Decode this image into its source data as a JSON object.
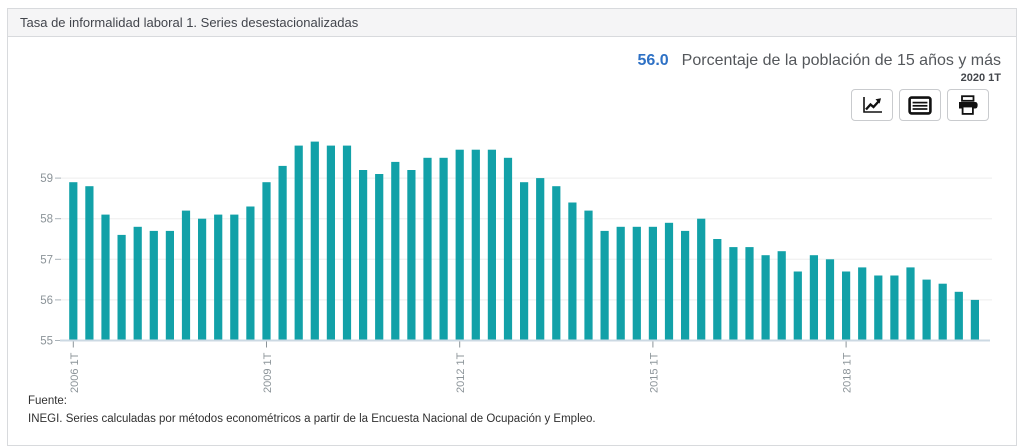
{
  "header": {
    "title": "Tasa de informalidad laboral 1. Series desestacionalizadas"
  },
  "indicator": {
    "value": "56.0",
    "label": "Porcentaje de la población de 15 años y más",
    "period": "2020 1T"
  },
  "toolbar": {
    "buttons": [
      {
        "name": "chart-view",
        "icon": "line-chart-icon"
      },
      {
        "name": "table-view",
        "icon": "table-icon"
      },
      {
        "name": "print",
        "icon": "printer-icon"
      }
    ]
  },
  "chart_data": {
    "type": "bar",
    "title": "Tasa de informalidad laboral 1. Series desestacionalizadas",
    "xlabel": "",
    "ylabel": "Porcentaje de la población de 15 años y más",
    "ylim": [
      55,
      60
    ],
    "yticks": [
      55,
      56,
      57,
      58,
      59
    ],
    "grid": true,
    "legend": "none",
    "bar_color": "#12a1a8",
    "xtick_indices": [
      0,
      12,
      24,
      36,
      48
    ],
    "x": [
      "2006 1T",
      "2006 2T",
      "2006 3T",
      "2006 4T",
      "2007 1T",
      "2007 2T",
      "2007 3T",
      "2007 4T",
      "2008 1T",
      "2008 2T",
      "2008 3T",
      "2008 4T",
      "2009 1T",
      "2009 2T",
      "2009 3T",
      "2009 4T",
      "2010 1T",
      "2010 2T",
      "2010 3T",
      "2010 4T",
      "2011 1T",
      "2011 2T",
      "2011 3T",
      "2011 4T",
      "2012 1T",
      "2012 2T",
      "2012 3T",
      "2012 4T",
      "2013 1T",
      "2013 2T",
      "2013 3T",
      "2013 4T",
      "2014 1T",
      "2014 2T",
      "2014 3T",
      "2014 4T",
      "2015 1T",
      "2015 2T",
      "2015 3T",
      "2015 4T",
      "2016 1T",
      "2016 2T",
      "2016 3T",
      "2016 4T",
      "2017 1T",
      "2017 2T",
      "2017 3T",
      "2017 4T",
      "2018 1T",
      "2018 2T",
      "2018 3T",
      "2018 4T",
      "2019 1T",
      "2019 2T",
      "2019 3T",
      "2019 4T",
      "2020 1T"
    ],
    "values": [
      58.9,
      58.8,
      58.1,
      57.6,
      57.8,
      57.7,
      57.7,
      58.2,
      58.0,
      58.1,
      58.1,
      58.3,
      58.9,
      59.3,
      59.8,
      59.9,
      59.8,
      59.8,
      59.2,
      59.1,
      59.4,
      59.2,
      59.5,
      59.5,
      59.7,
      59.7,
      59.7,
      59.5,
      58.9,
      59.0,
      58.8,
      58.4,
      58.2,
      57.7,
      57.8,
      57.8,
      57.8,
      57.9,
      57.7,
      58.0,
      57.5,
      57.3,
      57.3,
      57.1,
      57.2,
      56.7,
      57.1,
      57.0,
      56.7,
      56.8,
      56.6,
      56.6,
      56.8,
      56.5,
      56.4,
      56.2,
      56.0
    ]
  },
  "footer": {
    "source_label": "Fuente:",
    "source_text": "INEGI. Series calculadas por métodos econométricos a partir de la Encuesta Nacional de Ocupación y Empleo."
  }
}
